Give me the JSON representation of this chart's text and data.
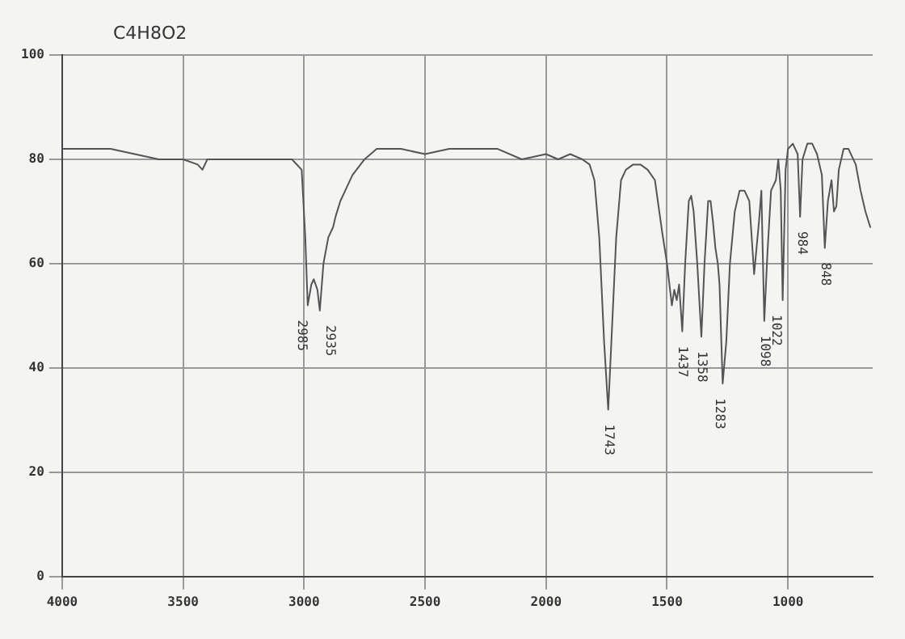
{
  "chart_data": {
    "type": "line",
    "title": "C4H8O2",
    "series": [
      {
        "color": "#555555",
        "x": [
          4000,
          3900,
          3800,
          3700,
          3600,
          3500,
          3440,
          3420,
          3400,
          3200,
          3050,
          3010,
          2995,
          2985,
          2970,
          2960,
          2945,
          2935,
          2920,
          2900,
          2880,
          2870,
          2850,
          2830,
          2800,
          2750,
          2700,
          2600,
          2500,
          2400,
          2300,
          2200,
          2100,
          2000,
          1950,
          1900,
          1850,
          1820,
          1800,
          1780,
          1760,
          1743,
          1730,
          1710,
          1690,
          1670,
          1640,
          1610,
          1580,
          1550,
          1520,
          1500,
          1480,
          1470,
          1460,
          1450,
          1437,
          1425,
          1410,
          1400,
          1390,
          1375,
          1358,
          1345,
          1330,
          1320,
          1310,
          1300,
          1290,
          1283,
          1270,
          1255,
          1240,
          1220,
          1200,
          1180,
          1160,
          1140,
          1120,
          1110,
          1098,
          1085,
          1070,
          1060,
          1050,
          1040,
          1030,
          1022,
          1010,
          1000,
          980,
          970,
          960,
          950,
          940,
          920,
          900,
          880,
          860,
          848,
          835,
          820,
          810,
          800,
          790,
          770,
          750,
          720,
          700,
          680,
          660
        ],
        "values": [
          82,
          82,
          82,
          81,
          80,
          80,
          79,
          78,
          80,
          80,
          80,
          78,
          65,
          52,
          56,
          57,
          55,
          51,
          60,
          65,
          67,
          69,
          72,
          74,
          77,
          80,
          82,
          82,
          81,
          82,
          82,
          82,
          80,
          81,
          80,
          81,
          80,
          79,
          76,
          65,
          45,
          32,
          45,
          65,
          76,
          78,
          79,
          79,
          78,
          76,
          66,
          60,
          52,
          55,
          53,
          56,
          47,
          60,
          72,
          73,
          70,
          60,
          46,
          60,
          72,
          72,
          68,
          63,
          60,
          56,
          37,
          45,
          60,
          70,
          74,
          74,
          72,
          58,
          68,
          74,
          49,
          62,
          74,
          75,
          76,
          80,
          74,
          53,
          78,
          82,
          83,
          82,
          81,
          69,
          80,
          83,
          83,
          81,
          77,
          63,
          72,
          76,
          70,
          71,
          78,
          82,
          82,
          79,
          74,
          70,
          67
        ]
      }
    ],
    "xlim": [
      4000,
      650
    ],
    "ylim": [
      0,
      100
    ],
    "xticks": [
      4000,
      3500,
      3000,
      2500,
      2000,
      1500,
      1000
    ],
    "yticks": [
      0,
      20,
      40,
      60,
      80,
      100
    ],
    "grid": true,
    "marker": "none",
    "line_style": "solid",
    "annotations": [
      {
        "text": "2985",
        "x": 2985,
        "y": 52
      },
      {
        "text": "2935",
        "x": 2935,
        "y": 51
      },
      {
        "text": "1743",
        "x": 1743,
        "y": 32
      },
      {
        "text": "1437",
        "x": 1437,
        "y": 47
      },
      {
        "text": "1358",
        "x": 1358,
        "y": 46
      },
      {
        "text": "1283",
        "x": 1283,
        "y": 37
      },
      {
        "text": "1098",
        "x": 1098,
        "y": 49
      },
      {
        "text": "1022",
        "x": 1022,
        "y": 53
      },
      {
        "text": "984",
        "x": 984,
        "y": 69
      },
      {
        "text": "848",
        "x": 848,
        "y": 63
      }
    ]
  }
}
